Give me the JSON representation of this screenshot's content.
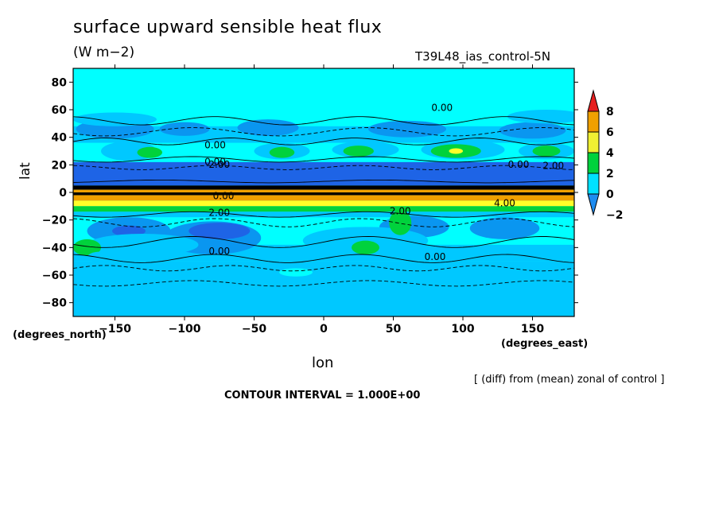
{
  "chart_data": {
    "type": "heatmap",
    "title": "surface upward sensible heat flux",
    "units": "(W m−2)",
    "run_label": "T39L48_ias_control-5N",
    "xlabel": "lon",
    "ylabel": "lat",
    "x_unit_label": "(degrees_east)",
    "y_unit_label": "(degrees_north)",
    "note": "[ (diff) from (mean) zonal of control ]",
    "contour_interval_text": "CONTOUR INTERVAL = 1.000E+00",
    "xlim": [
      -180,
      180
    ],
    "ylim": [
      -90,
      90
    ],
    "x_ticks": [
      -150,
      -100,
      -50,
      0,
      50,
      100,
      150
    ],
    "x_tick_labels": [
      "−150",
      "−100",
      "−50",
      "0",
      "50",
      "100",
      "150"
    ],
    "y_ticks": [
      80,
      60,
      40,
      20,
      0,
      -20,
      -40,
      -60,
      -80
    ],
    "y_tick_labels": [
      "80",
      "60",
      "40",
      "20",
      "0",
      "−20",
      "−40",
      "−60",
      "−80"
    ],
    "colorbar": {
      "levels": [
        -2,
        0,
        2,
        4,
        6,
        8
      ],
      "labels": [
        "−2",
        "0",
        "2",
        "4",
        "6",
        "8"
      ],
      "colors": [
        "#1e8cf0",
        "#00e1ff",
        "#00d23c",
        "#f0f032",
        "#f0a000",
        "#e61e1e"
      ]
    },
    "contour_labels": [
      "0.00",
      "0.00",
      "0.00",
      "2.00",
      "0.00",
      "2.00",
      "2.00",
      "4.00",
      "0.00",
      "2.00",
      "0.00",
      "0.00"
    ],
    "fill_colors": {
      "cyan": "#00ffff",
      "light_blue": "#00c8ff",
      "blue": "#0a96f0",
      "dark_blue": "#1e64e6",
      "green": "#00d23c",
      "yellow": "#ffff28",
      "orange": "#f0a000",
      "black": "#000000"
    }
  }
}
